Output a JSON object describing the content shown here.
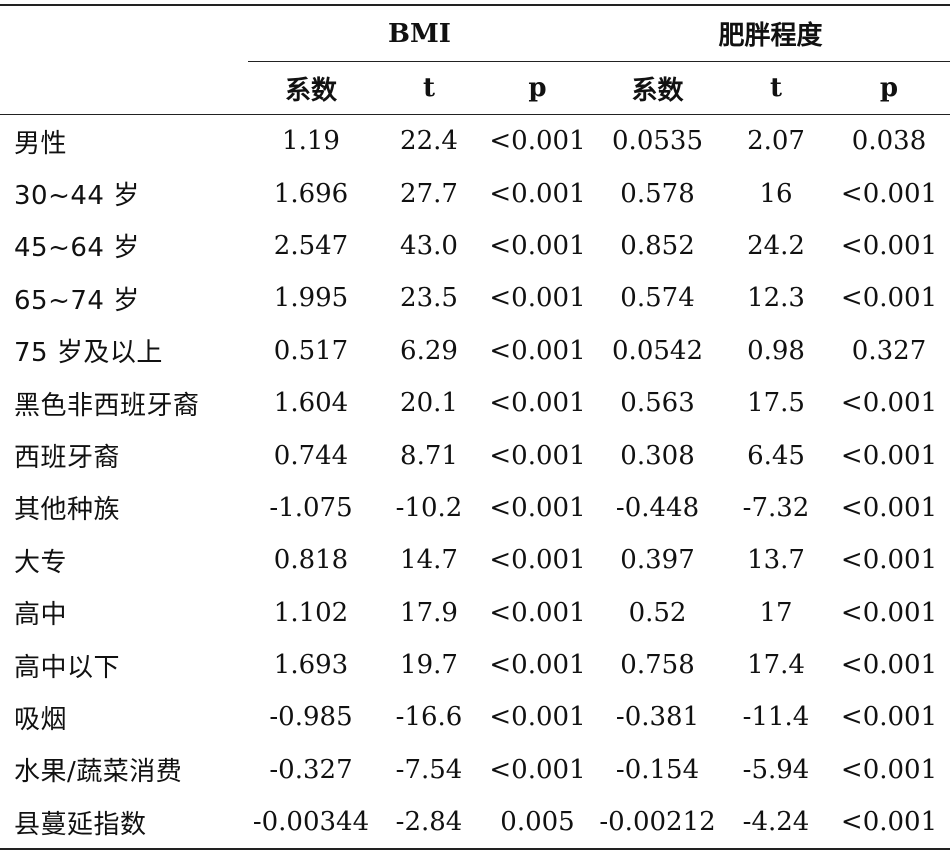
{
  "header": {
    "group_bmi": "BMI",
    "group_obesity": "肥胖程度",
    "col_coef_1": "系数",
    "col_t_1": "t",
    "col_p_1": "p",
    "col_coef_2": "系数",
    "col_t_2": "t",
    "col_p_2": "p"
  },
  "rows": [
    {
      "label": "男性",
      "bmi_coef": "1.19",
      "bmi_t": "22.4",
      "bmi_p": "<0.001",
      "ob_coef": "0.0535",
      "ob_t": "2.07",
      "ob_p": "0.038"
    },
    {
      "label": "30~44 岁",
      "bmi_coef": "1.696",
      "bmi_t": "27.7",
      "bmi_p": "<0.001",
      "ob_coef": "0.578",
      "ob_t": "16",
      "ob_p": "<0.001"
    },
    {
      "label": "45~64 岁",
      "bmi_coef": "2.547",
      "bmi_t": "43.0",
      "bmi_p": "<0.001",
      "ob_coef": "0.852",
      "ob_t": "24.2",
      "ob_p": "<0.001"
    },
    {
      "label": "65~74 岁",
      "bmi_coef": "1.995",
      "bmi_t": "23.5",
      "bmi_p": "<0.001",
      "ob_coef": "0.574",
      "ob_t": "12.3",
      "ob_p": "<0.001"
    },
    {
      "label": "75 岁及以上",
      "bmi_coef": "0.517",
      "bmi_t": "6.29",
      "bmi_p": "<0.001",
      "ob_coef": "0.0542",
      "ob_t": "0.98",
      "ob_p": "0.327"
    },
    {
      "label": "黑色非西班牙裔",
      "bmi_coef": "1.604",
      "bmi_t": "20.1",
      "bmi_p": "<0.001",
      "ob_coef": "0.563",
      "ob_t": "17.5",
      "ob_p": "<0.001"
    },
    {
      "label": "西班牙裔",
      "bmi_coef": "0.744",
      "bmi_t": "8.71",
      "bmi_p": "<0.001",
      "ob_coef": "0.308",
      "ob_t": "6.45",
      "ob_p": "<0.001"
    },
    {
      "label": "其他种族",
      "bmi_coef": "-1.075",
      "bmi_t": "-10.2",
      "bmi_p": "<0.001",
      "ob_coef": "-0.448",
      "ob_t": "-7.32",
      "ob_p": "<0.001"
    },
    {
      "label": "大专",
      "bmi_coef": "0.818",
      "bmi_t": "14.7",
      "bmi_p": "<0.001",
      "ob_coef": "0.397",
      "ob_t": "13.7",
      "ob_p": "<0.001"
    },
    {
      "label": "高中",
      "bmi_coef": "1.102",
      "bmi_t": "17.9",
      "bmi_p": "<0.001",
      "ob_coef": "0.52",
      "ob_t": "17",
      "ob_p": "<0.001"
    },
    {
      "label": "高中以下",
      "bmi_coef": "1.693",
      "bmi_t": "19.7",
      "bmi_p": "<0.001",
      "ob_coef": "0.758",
      "ob_t": "17.4",
      "ob_p": "<0.001"
    },
    {
      "label": "吸烟",
      "bmi_coef": "-0.985",
      "bmi_t": "-16.6",
      "bmi_p": "<0.001",
      "ob_coef": "-0.381",
      "ob_t": "-11.4",
      "ob_p": "<0.001"
    },
    {
      "label": "水果/蔬菜消费",
      "bmi_coef": "-0.327",
      "bmi_t": "-7.54",
      "bmi_p": "<0.001",
      "ob_coef": "-0.154",
      "ob_t": "-5.94",
      "ob_p": "<0.001"
    },
    {
      "label": "县蔓延指数",
      "bmi_coef": "-0.00344",
      "bmi_t": "-2.84",
      "bmi_p": "0.005",
      "ob_coef": "-0.00212",
      "ob_t": "-4.24",
      "ob_p": "<0.001"
    }
  ]
}
